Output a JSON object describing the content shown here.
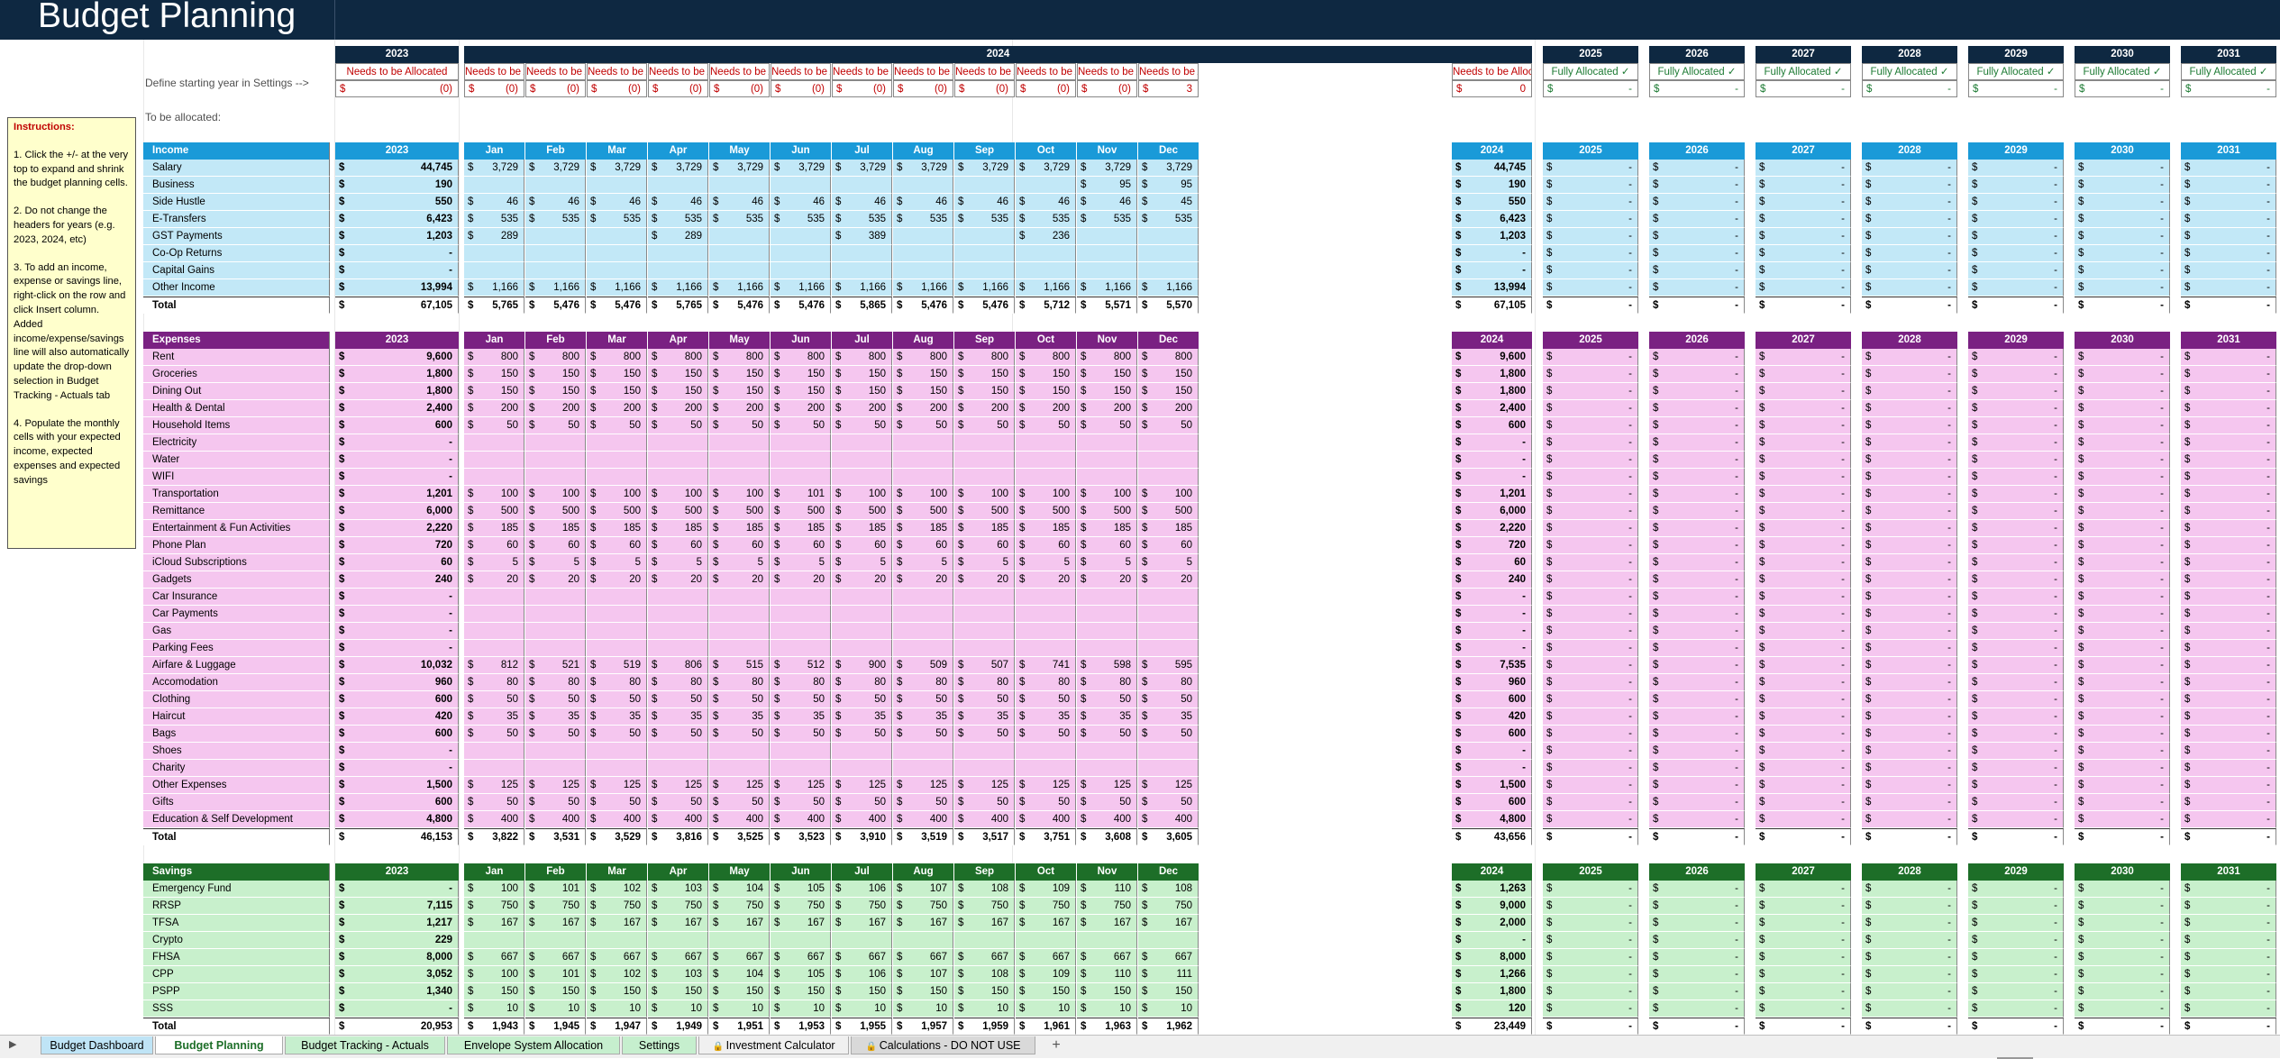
{
  "page_title": "Budget Planning",
  "instructions": {
    "heading": "Instructions:",
    "steps": [
      "1. Click the +/- at the very top to expand and shrink the budget planning cells.",
      "2. Do not change the headers for years (e.g. 2023, 2024, etc)",
      "3. To add an income, expense or savings line, right-click on the row and click Insert column. Added income/expense/savings line will also automatically update the drop-down selection in Budget Tracking - Actuals tab",
      "4. Populate the monthly cells with your expected income, expected expenses and expected savings"
    ]
  },
  "side_labels": {
    "define_year": "Define starting year in Settings -->",
    "to_allocate": "To be allocated:"
  },
  "top_headers": {
    "y2023": "2023",
    "y2024": "2024",
    "future": [
      "2025",
      "2026",
      "2027",
      "2028",
      "2029",
      "2030",
      "2031"
    ]
  },
  "allocation": {
    "y2023_status": "Needs to be Allocated",
    "y2023_value": "(0)",
    "months_status": "Needs to be Allocated",
    "months_values": [
      "(0)",
      "(0)",
      "(0)",
      "(0)",
      "(0)",
      "(0)",
      "(0)",
      "(0)",
      "(0)",
      "(0)",
      "(0)",
      "3"
    ],
    "y2024_value": "0",
    "future_status": "Fully Allocated ✓",
    "future_value": "-"
  },
  "column_headers": [
    "2023",
    "Jan",
    "Feb",
    "Mar",
    "Apr",
    "May",
    "Jun",
    "Jul",
    "Aug",
    "Sep",
    "Oct",
    "Nov",
    "Dec",
    "2024",
    "2025",
    "2026",
    "2027",
    "2028",
    "2029",
    "2030",
    "2031"
  ],
  "colors": {
    "navy": "#0e2841",
    "income_head": "#1a9ad8",
    "income_fill": "#c2e8f7",
    "expense_head": "#7a2182",
    "expense_fill": "#f5c6ef",
    "savings_head": "#1d6e28",
    "savings_fill": "#c8f0cc",
    "alloc_red": "#c00000",
    "alloc_green": "#1e7b34"
  },
  "dash": "-",
  "currency": "$",
  "sections": [
    {
      "key": "income",
      "title": "Income",
      "rows": [
        {
          "label": "Salary",
          "y2023": "44,745",
          "m": [
            "3,729",
            "3,729",
            "3,729",
            "3,729",
            "3,729",
            "3,729",
            "3,729",
            "3,729",
            "3,729",
            "3,729",
            "3,729",
            "3,729"
          ],
          "y2024": "44,745"
        },
        {
          "label": "Business",
          "y2023": "190",
          "m": [
            "",
            "",
            "",
            "",
            "",
            "",
            "",
            "",
            "",
            "",
            "95",
            "95"
          ],
          "y2024": "190"
        },
        {
          "label": "Side Hustle",
          "y2023": "550",
          "m": [
            "46",
            "46",
            "46",
            "46",
            "46",
            "46",
            "46",
            "46",
            "46",
            "46",
            "46",
            "45"
          ],
          "y2024": "550"
        },
        {
          "label": "E-Transfers",
          "y2023": "6,423",
          "m": [
            "535",
            "535",
            "535",
            "535",
            "535",
            "535",
            "535",
            "535",
            "535",
            "535",
            "535",
            "535"
          ],
          "y2024": "6,423"
        },
        {
          "label": "GST Payments",
          "y2023": "1,203",
          "m": [
            "289",
            "",
            "",
            "289",
            "",
            "",
            "389",
            "",
            "",
            "236",
            "",
            ""
          ],
          "y2024": "1,203"
        },
        {
          "label": "Co-Op Returns",
          "y2023": "-",
          "m": [
            "",
            "",
            "",
            "",
            "",
            "",
            "",
            "",
            "",
            "",
            "",
            ""
          ],
          "y2024": "-"
        },
        {
          "label": "Capital Gains",
          "y2023": "-",
          "m": [
            "",
            "",
            "",
            "",
            "",
            "",
            "",
            "",
            "",
            "",
            "",
            ""
          ],
          "y2024": "-"
        },
        {
          "label": "Other Income",
          "y2023": "13,994",
          "m": [
            "1,166",
            "1,166",
            "1,166",
            "1,166",
            "1,166",
            "1,166",
            "1,166",
            "1,166",
            "1,166",
            "1,166",
            "1,166",
            "1,166"
          ],
          "y2024": "13,994"
        }
      ],
      "total": {
        "label": "Total",
        "y2023": "67,105",
        "m": [
          "5,765",
          "5,476",
          "5,476",
          "5,765",
          "5,476",
          "5,476",
          "5,865",
          "5,476",
          "5,476",
          "5,712",
          "5,571",
          "5,570"
        ],
        "y2024": "67,105"
      }
    },
    {
      "key": "expenses",
      "title": "Expenses",
      "rows": [
        {
          "label": "Rent",
          "y2023": "9,600",
          "m": [
            "800",
            "800",
            "800",
            "800",
            "800",
            "800",
            "800",
            "800",
            "800",
            "800",
            "800",
            "800"
          ],
          "y2024": "9,600"
        },
        {
          "label": "Groceries",
          "y2023": "1,800",
          "m": [
            "150",
            "150",
            "150",
            "150",
            "150",
            "150",
            "150",
            "150",
            "150",
            "150",
            "150",
            "150"
          ],
          "y2024": "1,800"
        },
        {
          "label": "Dining Out",
          "y2023": "1,800",
          "m": [
            "150",
            "150",
            "150",
            "150",
            "150",
            "150",
            "150",
            "150",
            "150",
            "150",
            "150",
            "150"
          ],
          "y2024": "1,800"
        },
        {
          "label": "Health & Dental",
          "y2023": "2,400",
          "m": [
            "200",
            "200",
            "200",
            "200",
            "200",
            "200",
            "200",
            "200",
            "200",
            "200",
            "200",
            "200"
          ],
          "y2024": "2,400"
        },
        {
          "label": "Household Items",
          "y2023": "600",
          "m": [
            "50",
            "50",
            "50",
            "50",
            "50",
            "50",
            "50",
            "50",
            "50",
            "50",
            "50",
            "50"
          ],
          "y2024": "600"
        },
        {
          "label": "Electricity",
          "y2023": "-",
          "m": [
            "",
            "",
            "",
            "",
            "",
            "",
            "",
            "",
            "",
            "",
            "",
            ""
          ],
          "y2024": "-"
        },
        {
          "label": "Water",
          "y2023": "-",
          "m": [
            "",
            "",
            "",
            "",
            "",
            "",
            "",
            "",
            "",
            "",
            "",
            ""
          ],
          "y2024": "-"
        },
        {
          "label": "WIFI",
          "y2023": "-",
          "m": [
            "",
            "",
            "",
            "",
            "",
            "",
            "",
            "",
            "",
            "",
            "",
            ""
          ],
          "y2024": "-"
        },
        {
          "label": "Transportation",
          "y2023": "1,201",
          "m": [
            "100",
            "100",
            "100",
            "100",
            "100",
            "101",
            "100",
            "100",
            "100",
            "100",
            "100",
            "100"
          ],
          "y2024": "1,201"
        },
        {
          "label": "Remittance",
          "y2023": "6,000",
          "m": [
            "500",
            "500",
            "500",
            "500",
            "500",
            "500",
            "500",
            "500",
            "500",
            "500",
            "500",
            "500"
          ],
          "y2024": "6,000"
        },
        {
          "label": "Entertainment & Fun Activities",
          "y2023": "2,220",
          "m": [
            "185",
            "185",
            "185",
            "185",
            "185",
            "185",
            "185",
            "185",
            "185",
            "185",
            "185",
            "185"
          ],
          "y2024": "2,220"
        },
        {
          "label": "Phone Plan",
          "y2023": "720",
          "m": [
            "60",
            "60",
            "60",
            "60",
            "60",
            "60",
            "60",
            "60",
            "60",
            "60",
            "60",
            "60"
          ],
          "y2024": "720"
        },
        {
          "label": "iCloud Subscriptions",
          "y2023": "60",
          "m": [
            "5",
            "5",
            "5",
            "5",
            "5",
            "5",
            "5",
            "5",
            "5",
            "5",
            "5",
            "5"
          ],
          "y2024": "60"
        },
        {
          "label": "Gadgets",
          "y2023": "240",
          "m": [
            "20",
            "20",
            "20",
            "20",
            "20",
            "20",
            "20",
            "20",
            "20",
            "20",
            "20",
            "20"
          ],
          "y2024": "240"
        },
        {
          "label": "Car Insurance",
          "y2023": "-",
          "m": [
            "",
            "",
            "",
            "",
            "",
            "",
            "",
            "",
            "",
            "",
            "",
            ""
          ],
          "y2024": "-"
        },
        {
          "label": "Car Payments",
          "y2023": "-",
          "m": [
            "",
            "",
            "",
            "",
            "",
            "",
            "",
            "",
            "",
            "",
            "",
            ""
          ],
          "y2024": "-"
        },
        {
          "label": "Gas",
          "y2023": "-",
          "m": [
            "",
            "",
            "",
            "",
            "",
            "",
            "",
            "",
            "",
            "",
            "",
            ""
          ],
          "y2024": "-"
        },
        {
          "label": "Parking Fees",
          "y2023": "-",
          "m": [
            "",
            "",
            "",
            "",
            "",
            "",
            "",
            "",
            "",
            "",
            "",
            ""
          ],
          "y2024": "-"
        },
        {
          "label": "Airfare & Luggage",
          "y2023": "10,032",
          "m": [
            "812",
            "521",
            "519",
            "806",
            "515",
            "512",
            "900",
            "509",
            "507",
            "741",
            "598",
            "595"
          ],
          "y2024": "7,535"
        },
        {
          "label": "Accomodation",
          "y2023": "960",
          "m": [
            "80",
            "80",
            "80",
            "80",
            "80",
            "80",
            "80",
            "80",
            "80",
            "80",
            "80",
            "80"
          ],
          "y2024": "960"
        },
        {
          "label": "Clothing",
          "y2023": "600",
          "m": [
            "50",
            "50",
            "50",
            "50",
            "50",
            "50",
            "50",
            "50",
            "50",
            "50",
            "50",
            "50"
          ],
          "y2024": "600"
        },
        {
          "label": "Haircut",
          "y2023": "420",
          "m": [
            "35",
            "35",
            "35",
            "35",
            "35",
            "35",
            "35",
            "35",
            "35",
            "35",
            "35",
            "35"
          ],
          "y2024": "420"
        },
        {
          "label": "Bags",
          "y2023": "600",
          "m": [
            "50",
            "50",
            "50",
            "50",
            "50",
            "50",
            "50",
            "50",
            "50",
            "50",
            "50",
            "50"
          ],
          "y2024": "600"
        },
        {
          "label": "Shoes",
          "y2023": "-",
          "m": [
            "",
            "",
            "",
            "",
            "",
            "",
            "",
            "",
            "",
            "",
            "",
            ""
          ],
          "y2024": "-"
        },
        {
          "label": "Charity",
          "y2023": "-",
          "m": [
            "",
            "",
            "",
            "",
            "",
            "",
            "",
            "",
            "",
            "",
            "",
            ""
          ],
          "y2024": "-"
        },
        {
          "label": "Other Expenses",
          "y2023": "1,500",
          "m": [
            "125",
            "125",
            "125",
            "125",
            "125",
            "125",
            "125",
            "125",
            "125",
            "125",
            "125",
            "125"
          ],
          "y2024": "1,500"
        },
        {
          "label": "Gifts",
          "y2023": "600",
          "m": [
            "50",
            "50",
            "50",
            "50",
            "50",
            "50",
            "50",
            "50",
            "50",
            "50",
            "50",
            "50"
          ],
          "y2024": "600"
        },
        {
          "label": "Education & Self Development",
          "y2023": "4,800",
          "m": [
            "400",
            "400",
            "400",
            "400",
            "400",
            "400",
            "400",
            "400",
            "400",
            "400",
            "400",
            "400"
          ],
          "y2024": "4,800"
        }
      ],
      "total": {
        "label": "Total",
        "y2023": "46,153",
        "m": [
          "3,822",
          "3,531",
          "3,529",
          "3,816",
          "3,525",
          "3,523",
          "3,910",
          "3,519",
          "3,517",
          "3,751",
          "3,608",
          "3,605"
        ],
        "y2024": "43,656"
      }
    },
    {
      "key": "savings",
      "title": "Savings",
      "rows": [
        {
          "label": "Emergency Fund",
          "y2023": "-",
          "m": [
            "100",
            "101",
            "102",
            "103",
            "104",
            "105",
            "106",
            "107",
            "108",
            "109",
            "110",
            "108"
          ],
          "y2024": "1,263"
        },
        {
          "label": "RRSP",
          "y2023": "7,115",
          "m": [
            "750",
            "750",
            "750",
            "750",
            "750",
            "750",
            "750",
            "750",
            "750",
            "750",
            "750",
            "750"
          ],
          "y2024": "9,000"
        },
        {
          "label": "TFSA",
          "y2023": "1,217",
          "m": [
            "167",
            "167",
            "167",
            "167",
            "167",
            "167",
            "167",
            "167",
            "167",
            "167",
            "167",
            "167"
          ],
          "y2024": "2,000"
        },
        {
          "label": "Crypto",
          "y2023": "229",
          "m": [
            "",
            "",
            "",
            "",
            "",
            "",
            "",
            "",
            "",
            "",
            "",
            ""
          ],
          "y2024": "-"
        },
        {
          "label": "FHSA",
          "y2023": "8,000",
          "m": [
            "667",
            "667",
            "667",
            "667",
            "667",
            "667",
            "667",
            "667",
            "667",
            "667",
            "667",
            "667"
          ],
          "y2024": "8,000"
        },
        {
          "label": "CPP",
          "y2023": "3,052",
          "m": [
            "100",
            "101",
            "102",
            "103",
            "104",
            "105",
            "106",
            "107",
            "108",
            "109",
            "110",
            "111"
          ],
          "y2024": "1,266"
        },
        {
          "label": "PSPP",
          "y2023": "1,340",
          "m": [
            "150",
            "150",
            "150",
            "150",
            "150",
            "150",
            "150",
            "150",
            "150",
            "150",
            "150",
            "150"
          ],
          "y2024": "1,800"
        },
        {
          "label": "SSS",
          "y2023": "-",
          "m": [
            "10",
            "10",
            "10",
            "10",
            "10",
            "10",
            "10",
            "10",
            "10",
            "10",
            "10",
            "10"
          ],
          "y2024": "120"
        }
      ],
      "total": {
        "label": "Total",
        "y2023": "20,953",
        "m": [
          "1,943",
          "1,945",
          "1,947",
          "1,949",
          "1,951",
          "1,953",
          "1,955",
          "1,957",
          "1,959",
          "1,961",
          "1,963",
          "1,962"
        ],
        "y2024": "23,449"
      }
    }
  ],
  "tabs": [
    {
      "label": "Budget Dashboard",
      "color": "#bfe4f6",
      "active": false,
      "locked": false
    },
    {
      "label": "Budget Planning",
      "color": "#ffffff",
      "active": true,
      "locked": false
    },
    {
      "label": "Budget Tracking - Actuals",
      "color": "#c6efce",
      "active": false,
      "locked": false
    },
    {
      "label": "Envelope System Allocation",
      "color": "#c6efce",
      "active": false,
      "locked": false
    },
    {
      "label": "Settings",
      "color": "#c6efce",
      "active": false,
      "locked": false
    },
    {
      "label": "Investment Calculator",
      "color": "#f0f0f0",
      "active": false,
      "locked": true
    },
    {
      "label": "Calculations - DO NOT USE",
      "color": "#d9d9d9",
      "active": false,
      "locked": true
    }
  ],
  "add_tab": "+"
}
